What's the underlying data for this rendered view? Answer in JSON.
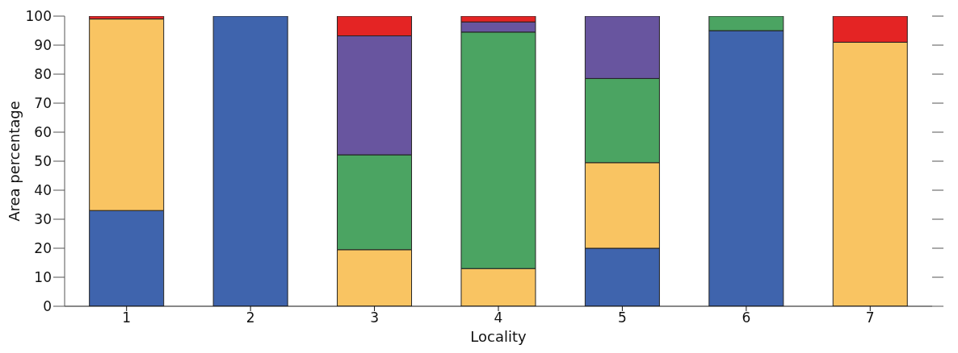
{
  "chart_data": {
    "type": "bar",
    "stacked": true,
    "xlabel": "Locality",
    "ylabel": "Area percentage",
    "categories": [
      "1",
      "2",
      "3",
      "4",
      "5",
      "6",
      "7"
    ],
    "series": [
      {
        "color": "#3f64ad",
        "values": [
          33,
          100,
          0,
          0,
          20,
          95,
          0
        ]
      },
      {
        "color": "#f9c462",
        "values": [
          66,
          0,
          19.5,
          13,
          29.5,
          0,
          91
        ]
      },
      {
        "color": "#4ba462",
        "values": [
          0,
          0,
          32.7,
          81.5,
          29,
          5,
          0
        ]
      },
      {
        "color": "#68559f",
        "values": [
          0,
          0,
          41,
          3.5,
          21.5,
          0,
          0
        ]
      },
      {
        "color": "#e42424",
        "values": [
          1,
          0,
          6.8,
          2,
          0,
          0,
          9
        ]
      }
    ],
    "ylim": [
      0,
      100
    ],
    "yticks": [
      0,
      10,
      20,
      30,
      40,
      50,
      60,
      70,
      80,
      90,
      100
    ],
    "grid": false,
    "legend": false
  }
}
